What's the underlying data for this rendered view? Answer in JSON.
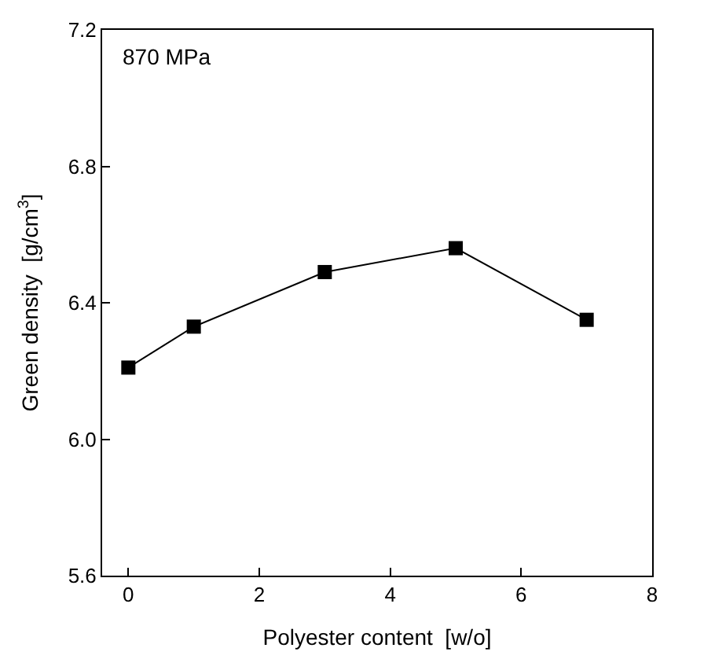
{
  "chart_data": {
    "type": "line",
    "xlabel": "Polyester content  [w/o]",
    "ylabel": "Green density  [g/cm$^{3}$]",
    "annotations": [
      "870 MPa"
    ],
    "x": [
      0,
      1,
      3,
      5,
      7
    ],
    "series": [
      {
        "color": "#000000",
        "values": [
          6.21,
          6.33,
          6.49,
          6.56,
          6.35
        ]
      }
    ],
    "xlim": [
      -0.4,
      8
    ],
    "ylim": [
      5.6,
      7.2
    ],
    "xticks": [
      0,
      2,
      4,
      6,
      8
    ],
    "yticks": [
      5.6,
      {
        "value": 6.0,
        "label": "6.0"
      },
      6.4,
      6.8,
      7.2
    ],
    "marker": "square",
    "line_style": "solid"
  }
}
